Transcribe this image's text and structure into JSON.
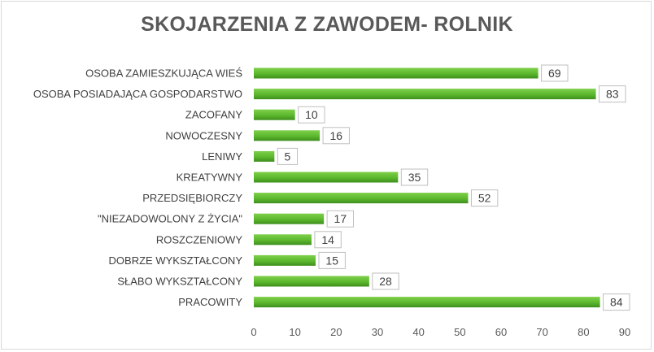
{
  "chart_data": {
    "type": "bar",
    "orientation": "horizontal",
    "title": "SKOJARZENIA Z ZAWODEM- ROLNIK",
    "categories": [
      "OSOBA ZAMIESZKUJĄCA WIEŚ",
      "OSOBA POSIADAJĄCA GOSPODARSTWO",
      "ZACOFANY",
      "NOWOCZESNY",
      "LENIWY",
      "KREATYWNY",
      "PRZEDSIĘBIORCZY",
      "\"NIEZADOWOLONY Z ŻYCIA\"",
      "ROSZCZENIOWY",
      "DOBRZE WYKSZTAŁCONY",
      "SŁABO WYKSZTAŁCONY",
      "PRACOWITY"
    ],
    "values": [
      69,
      83,
      10,
      16,
      5,
      35,
      52,
      17,
      14,
      15,
      28,
      84
    ],
    "xlim": [
      0,
      90
    ],
    "xticks": [
      0,
      10,
      20,
      30,
      40,
      50,
      60,
      70,
      80,
      90
    ],
    "grid": false,
    "legend": "none",
    "bar_color": "#5cb82e",
    "bar_color_dark": "#3e8e1c"
  }
}
